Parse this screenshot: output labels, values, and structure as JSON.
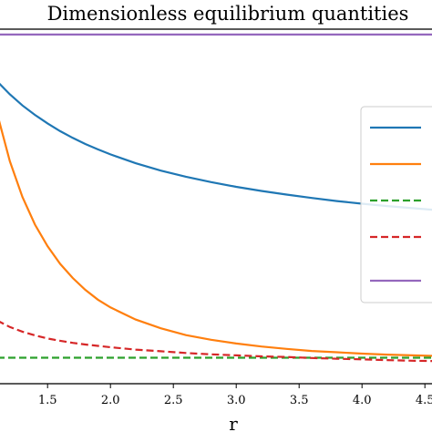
{
  "chart_data": {
    "type": "line",
    "title": "Dimensionless equilibrium quantities",
    "xlabel": "r",
    "ylabel": "",
    "xlim": [
      1.1,
      4.6
    ],
    "ylim": [
      -0.05,
      1.0
    ],
    "x_ticks": [
      1.5,
      2.0,
      2.5,
      3.0,
      3.5,
      4.0,
      4.5
    ],
    "x_tick_labels": [
      "1.5",
      "2.0",
      "2.5",
      "3.0",
      "3.5",
      "4.0",
      "4.5"
    ],
    "grid": false,
    "legend_placement": "right",
    "x": [
      1.1,
      1.2,
      1.3,
      1.4,
      1.5,
      1.6,
      1.7,
      1.8,
      1.9,
      2.0,
      2.2,
      2.4,
      2.6,
      2.8,
      3.0,
      3.2,
      3.4,
      3.6,
      3.8,
      4.0,
      4.2,
      4.4,
      4.6
    ],
    "series": [
      {
        "color": "#1f77b4",
        "dash": "solid",
        "values": [
          0.845,
          0.807,
          0.774,
          0.746,
          0.721,
          0.698,
          0.678,
          0.66,
          0.644,
          0.629,
          0.603,
          0.581,
          0.563,
          0.547,
          0.533,
          0.521,
          0.51,
          0.5,
          0.491,
          0.483,
          0.476,
          0.47,
          0.464
        ]
      },
      {
        "color": "#ff7f0e",
        "dash": "solid",
        "values": [
          0.749,
          0.609,
          0.503,
          0.421,
          0.357,
          0.305,
          0.263,
          0.228,
          0.199,
          0.176,
          0.14,
          0.114,
          0.094,
          0.08,
          0.069,
          0.06,
          0.053,
          0.047,
          0.043,
          0.039,
          0.036,
          0.034,
          0.032
        ]
      },
      {
        "color": "#2ca02c",
        "dash": "dashed",
        "values": [
          0.027,
          0.027,
          0.027,
          0.027,
          0.027,
          0.027,
          0.027,
          0.027,
          0.027,
          0.027,
          0.027,
          0.027,
          0.027,
          0.027,
          0.027,
          0.027,
          0.027,
          0.027,
          0.027,
          0.027,
          0.027,
          0.027,
          0.027
        ]
      },
      {
        "color": "#d62728",
        "dash": "dashed",
        "values": [
          0.137,
          0.118,
          0.104,
          0.093,
          0.084,
          0.077,
          0.071,
          0.066,
          0.062,
          0.058,
          0.051,
          0.046,
          0.041,
          0.037,
          0.034,
          0.031,
          0.029,
          0.026,
          0.024,
          0.022,
          0.02,
          0.018,
          0.017
        ]
      },
      {
        "color": "#9467bd",
        "dash": "solid",
        "values": [
          0.984,
          0.984,
          0.984,
          0.984,
          0.984,
          0.984,
          0.984,
          0.984,
          0.984,
          0.984,
          0.984,
          0.984,
          0.984,
          0.984,
          0.984,
          0.984,
          0.984,
          0.984,
          0.984,
          0.984,
          0.984,
          0.984,
          0.984
        ]
      }
    ]
  }
}
